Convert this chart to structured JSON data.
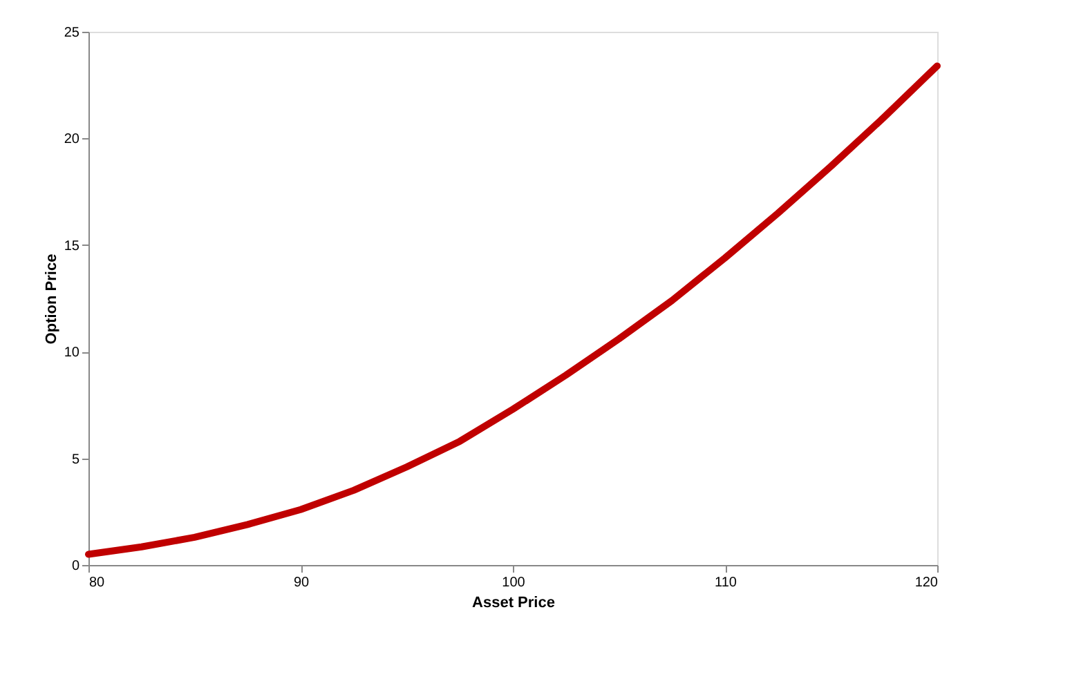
{
  "chart_data": {
    "type": "line",
    "xlabel": "Asset Price",
    "ylabel": "Option Price",
    "x": [
      80,
      82.5,
      85,
      87.5,
      90,
      92.5,
      95,
      97.5,
      100,
      102.5,
      105,
      107.5,
      110,
      112.5,
      115,
      117.5,
      120
    ],
    "series": [
      {
        "color": "#c00000",
        "values": [
          0.5,
          0.85,
          1.3,
          1.9,
          2.6,
          3.5,
          4.6,
          5.8,
          7.3,
          8.9,
          10.6,
          12.4,
          14.4,
          16.5,
          18.7,
          21.0,
          23.4
        ]
      }
    ],
    "xlim": [
      80,
      120
    ],
    "xticks": [
      80,
      90,
      100,
      110,
      120
    ],
    "ylim": [
      0,
      25
    ],
    "yticks": [
      0,
      5,
      10,
      15,
      20,
      25
    ],
    "grid": false,
    "legend": false,
    "marker": "none",
    "line_style": "solid"
  }
}
